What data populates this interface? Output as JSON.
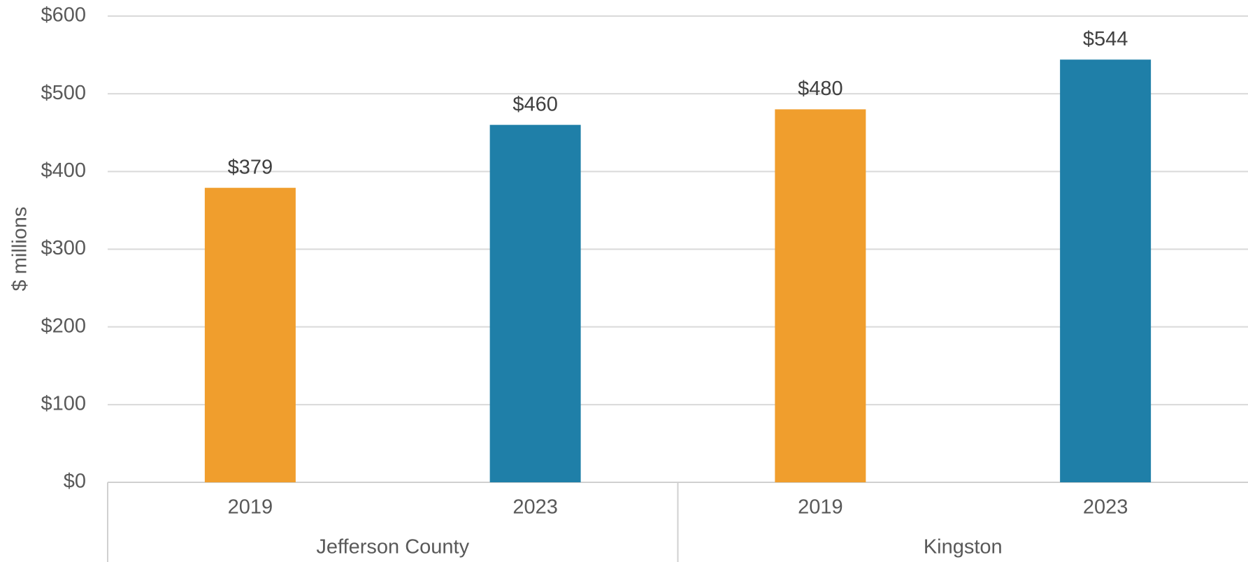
{
  "chart_data": {
    "type": "bar",
    "y_label": "$ millions",
    "groups": [
      {
        "name": "Jefferson County",
        "categories": [
          "2019",
          "2023"
        ],
        "values": [
          379,
          460
        ],
        "value_labels": [
          "$379",
          "$460"
        ],
        "colors": [
          "#f09e2d",
          "#1f7fa8"
        ]
      },
      {
        "name": "Kingston",
        "categories": [
          "2019",
          "2023"
        ],
        "values": [
          480,
          544
        ],
        "value_labels": [
          "$480",
          "$544"
        ],
        "colors": [
          "#f09e2d",
          "#1f7fa8"
        ]
      }
    ],
    "ylim": [
      0,
      600
    ],
    "yticks": [
      {
        "value": 0,
        "label": "$0"
      },
      {
        "value": 100,
        "label": "$100"
      },
      {
        "value": 200,
        "label": "$200"
      },
      {
        "value": 300,
        "label": "$300"
      },
      {
        "value": 400,
        "label": "$400"
      },
      {
        "value": 500,
        "label": "$500"
      },
      {
        "value": 600,
        "label": "$600"
      }
    ],
    "grid": true
  }
}
